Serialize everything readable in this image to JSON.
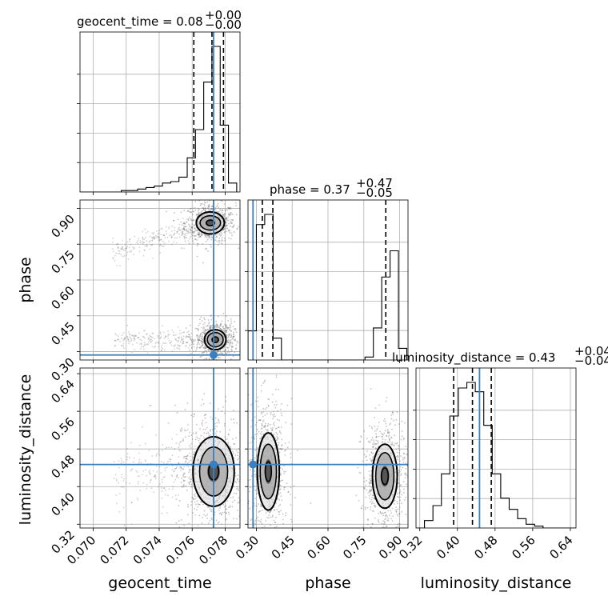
{
  "chart_data": {
    "type": "corner",
    "parameters": [
      "geocent_time",
      "phase",
      "luminosity_distance"
    ],
    "axis_labels": {
      "geocent_time": "geocent_time",
      "phase": "phase",
      "luminosity_distance": "luminosity_distance"
    },
    "ranges": {
      "geocent_time": [
        0.0692,
        0.0789
      ],
      "phase": [
        0.265,
        0.935
      ],
      "luminosity_distance": [
        0.312,
        0.652
      ]
    },
    "ticks": {
      "geocent_time": [
        0.07,
        0.072,
        0.074,
        0.076,
        0.078
      ],
      "phase": [
        0.3,
        0.45,
        0.6,
        0.75,
        0.9
      ],
      "luminosity_distance": [
        0.32,
        0.4,
        0.48,
        0.56,
        0.64
      ]
    },
    "tick_labels": {
      "geocent_time": [
        "0.070",
        "0.072",
        "0.074",
        "0.076",
        "0.078"
      ],
      "phase": [
        "0.30",
        "0.45",
        "0.60",
        "0.75",
        "0.90"
      ],
      "luminosity_distance": [
        "0.32",
        "0.40",
        "0.48",
        "0.56",
        "0.64"
      ]
    },
    "titles": [
      {
        "param": "geocent_time",
        "text": "geocent_time = 0.08",
        "plus": "+0.00",
        "minus": "−0.00"
      },
      {
        "param": "phase",
        "text": "phase = 0.37",
        "plus": "+0.47",
        "minus": "−0.05"
      },
      {
        "param": "luminosity_distance",
        "text": "luminosity_distance = 0.43",
        "plus": "+0.04",
        "minus": "−0.04"
      }
    ],
    "truths": {
      "geocent_time": 0.0773,
      "phase": 0.286,
      "luminosity_distance": 0.447
    },
    "quantiles": {
      "geocent_time": [
        0.0761,
        0.0772,
        0.0779
      ],
      "phase": [
        0.325,
        0.369,
        0.842
      ],
      "luminosity_distance": [
        0.392,
        0.432,
        0.472
      ]
    },
    "histograms": {
      "geocent_time": {
        "edges": [
          0.0692,
          0.0697,
          0.0702,
          0.0707,
          0.0712,
          0.0717,
          0.0722,
          0.0727,
          0.0732,
          0.0737,
          0.0742,
          0.0747,
          0.0752,
          0.0757,
          0.0762,
          0.0767,
          0.0772,
          0.0777,
          0.0782,
          0.0787
        ],
        "counts": [
          0,
          0,
          0,
          0,
          0,
          1,
          1,
          2,
          3,
          4,
          6,
          7,
          10,
          23,
          42,
          74,
          98,
          45,
          6
        ]
      },
      "phase": {
        "edges": [
          0.265,
          0.3,
          0.335,
          0.37,
          0.405,
          0.44,
          0.475,
          0.51,
          0.545,
          0.58,
          0.615,
          0.65,
          0.685,
          0.72,
          0.755,
          0.79,
          0.825,
          0.86,
          0.895,
          0.93
        ],
        "counts": [
          20,
          93,
          100,
          15,
          0,
          0,
          0,
          0,
          0,
          0,
          0,
          0,
          0,
          0,
          2,
          22,
          57,
          75,
          8
        ]
      },
      "luminosity_distance": {
        "edges": [
          0.312,
          0.33,
          0.348,
          0.366,
          0.384,
          0.402,
          0.42,
          0.438,
          0.456,
          0.474,
          0.492,
          0.51,
          0.528,
          0.546,
          0.564,
          0.582,
          0.6,
          0.618,
          0.636,
          0.654
        ],
        "counts": [
          0,
          4,
          12,
          29,
          60,
          75,
          78,
          73,
          55,
          29,
          16,
          10,
          5,
          2,
          1,
          0,
          0,
          0,
          0
        ]
      }
    },
    "contours": [
      {
        "x": "geocent_time",
        "y": "phase",
        "blobs": [
          {
            "center": [
              0.0771,
              0.839
            ],
            "outer": [
              0.00085,
              0.046
            ],
            "inner": [
              0.00062,
              0.03
            ],
            "core": [
              0.0003,
              0.015
            ]
          },
          {
            "center": [
              0.0774,
              0.35
            ],
            "outer": [
              0.00065,
              0.042
            ],
            "inner": [
              0.00048,
              0.03
            ],
            "core": [
              0.00024,
              0.015
            ]
          }
        ]
      },
      {
        "x": "geocent_time",
        "y": "luminosity_distance",
        "blobs": [
          {
            "center": [
              0.0773,
              0.432
            ],
            "outer": [
              0.00125,
              0.074
            ],
            "inner": [
              0.00085,
              0.052
            ],
            "core": [
              0.00038,
              0.022
            ]
          }
        ]
      },
      {
        "x": "phase",
        "y": "luminosity_distance",
        "blobs": [
          {
            "center": [
              0.35,
              0.432
            ],
            "outer": [
              0.046,
              0.082
            ],
            "inner": [
              0.034,
              0.058
            ],
            "core": [
              0.016,
              0.026
            ]
          },
          {
            "center": [
              0.838,
              0.422
            ],
            "outer": [
              0.052,
              0.068
            ],
            "inner": [
              0.038,
              0.05
            ],
            "core": [
              0.018,
              0.022
            ]
          }
        ]
      }
    ],
    "grid": true
  }
}
